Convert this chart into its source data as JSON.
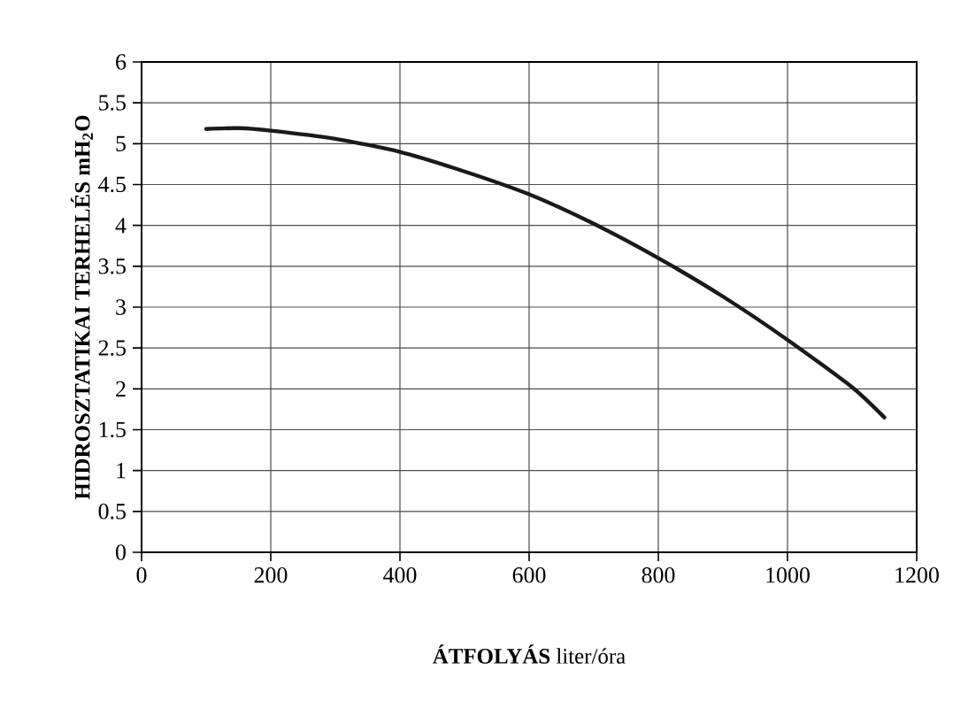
{
  "chart_data": {
    "type": "line",
    "xlabel": "**ÁTFOLYÁS** liter/óra",
    "ylabel": "HIDROSZTATIKAI TERHELÉS mH$_{2}$O",
    "x": [
      100,
      150,
      200,
      300,
      400,
      500,
      600,
      700,
      800,
      900,
      1000,
      1100,
      1150
    ],
    "series": [
      {
        "color": "#1a1a1a",
        "values": [
          5.18,
          5.19,
          5.16,
          5.06,
          4.9,
          4.66,
          4.38,
          4.02,
          3.6,
          3.13,
          2.6,
          2.02,
          1.65
        ]
      }
    ],
    "xlim": [
      0,
      1200
    ],
    "ylim": [
      0,
      6
    ],
    "xticks": [
      0,
      200,
      400,
      600,
      800,
      1000,
      1200
    ],
    "yticks": [
      0,
      0.5,
      1,
      1.5,
      2,
      2.5,
      3,
      3.5,
      4,
      4.5,
      5,
      5.5,
      6
    ],
    "grid": true,
    "marker": "none",
    "line_style": "solid"
  }
}
